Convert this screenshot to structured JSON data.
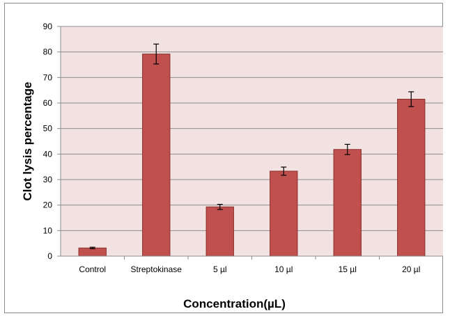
{
  "chart_data": {
    "type": "bar",
    "title": "",
    "xlabel": "Concentration(µL)",
    "ylabel": "Clot lysis percentage",
    "categories": [
      "Control",
      "Streptokinase",
      "5 µl",
      "10 µl",
      "15 µl",
      "20 µl"
    ],
    "series": [
      {
        "values": [
          3.2,
          79.2,
          19.3,
          33.3,
          41.8,
          61.5
        ],
        "errors": [
          0.3,
          3.9,
          1.0,
          1.6,
          2.0,
          2.9
        ]
      }
    ],
    "ylim": [
      0,
      90
    ],
    "ytick_step": 10,
    "grid": true,
    "legend": "none",
    "colors": {
      "bar_fill": "#c0504d",
      "bar_stroke": "#8b2f2c",
      "plot_background": "#f2e2e2",
      "gridline": "#8c8c8c",
      "error_bar": "#000000"
    }
  }
}
